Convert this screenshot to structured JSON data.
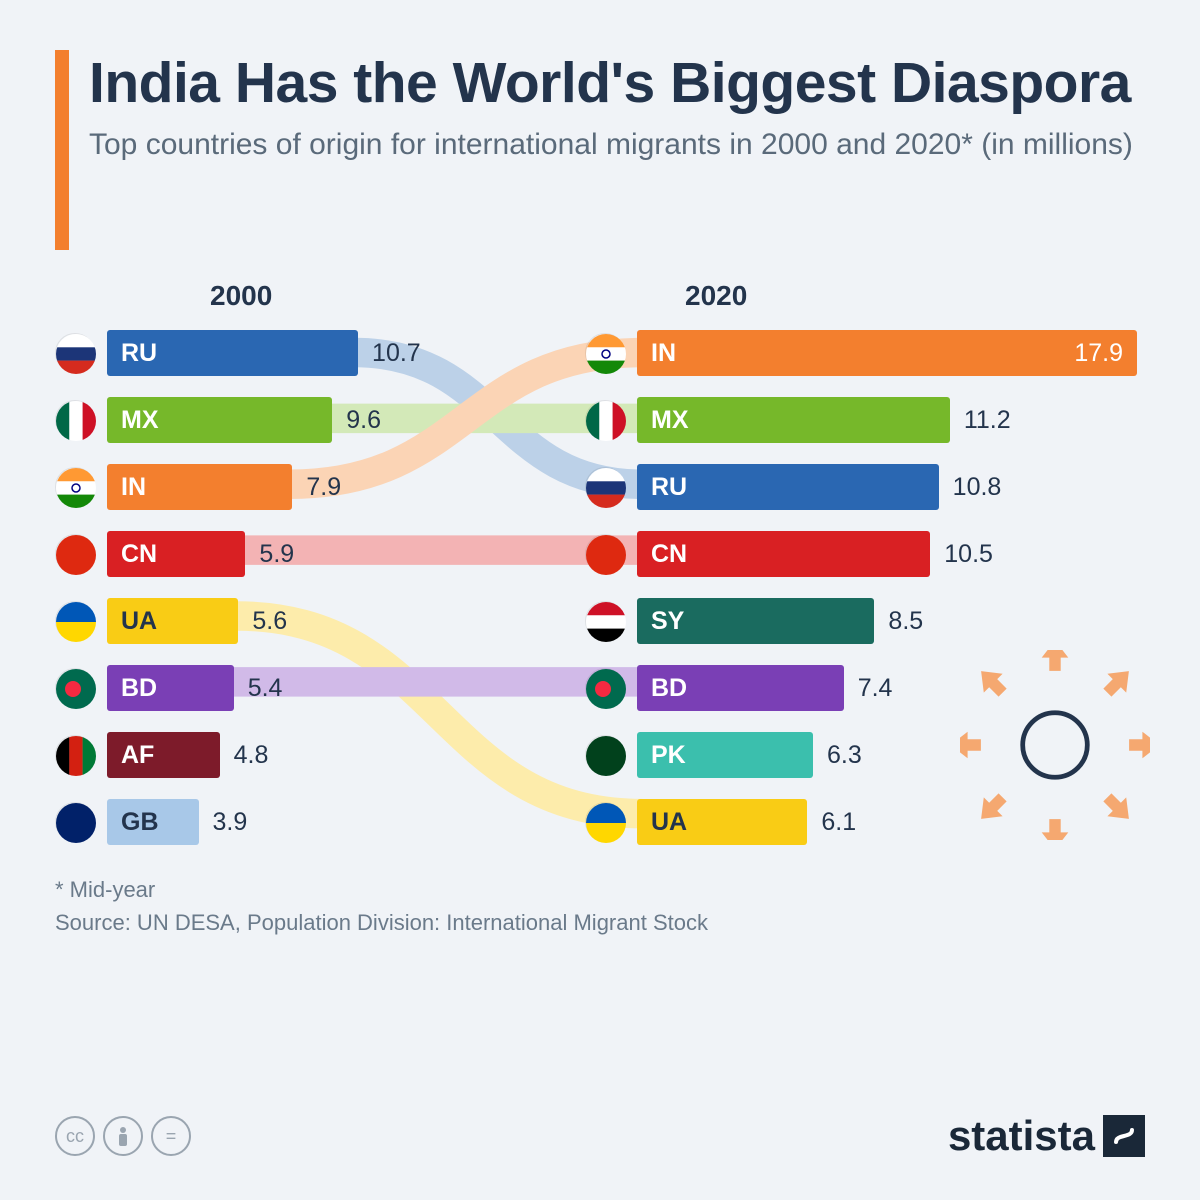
{
  "title": "India Has the World's Biggest Diaspora",
  "subtitle": "Top countries of origin for international migrants in 2000 and 2020* (in millions)",
  "year_left": "2000",
  "year_right": "2020",
  "max_value": 17.9,
  "bar_max_width_2000": 420,
  "bar_max_width_2020": 500,
  "colors": {
    "background": "#f0f3f7",
    "accent": "#f37f2e",
    "title": "#23344c",
    "subtitle": "#5a6a7a",
    "value": "#23344c"
  },
  "y2000": [
    {
      "code": "RU",
      "value": 10.7,
      "color": "#2a67b2",
      "textLight": false
    },
    {
      "code": "MX",
      "value": 9.6,
      "color": "#76b82a",
      "textLight": false
    },
    {
      "code": "IN",
      "value": 7.9,
      "color": "#f37f2e",
      "textLight": false
    },
    {
      "code": "CN",
      "value": 5.9,
      "color": "#d92023",
      "textLight": false
    },
    {
      "code": "UA",
      "value": 5.6,
      "color": "#f9cc15",
      "textLight": true
    },
    {
      "code": "BD",
      "value": 5.4,
      "color": "#7a3fb5",
      "textLight": false
    },
    {
      "code": "AF",
      "value": 4.8,
      "color": "#7d1b2a",
      "textLight": false
    },
    {
      "code": "GB",
      "value": 3.9,
      "color": "#a8c8e8",
      "textLight": true
    }
  ],
  "y2020": [
    {
      "code": "IN",
      "value": 17.9,
      "color": "#f37f2e",
      "textLight": false,
      "valueInside": true
    },
    {
      "code": "MX",
      "value": 11.2,
      "color": "#76b82a",
      "textLight": false
    },
    {
      "code": "RU",
      "value": 10.8,
      "color": "#2a67b2",
      "textLight": false
    },
    {
      "code": "CN",
      "value": 10.5,
      "color": "#d92023",
      "textLight": false
    },
    {
      "code": "SY",
      "value": 8.5,
      "color": "#1a6b5f",
      "textLight": false
    },
    {
      "code": "BD",
      "value": 7.4,
      "color": "#7a3fb5",
      "textLight": false
    },
    {
      "code": "PK",
      "value": 6.3,
      "color": "#3bbfad",
      "textLight": false
    },
    {
      "code": "UA",
      "value": 6.1,
      "color": "#f9cc15",
      "textLight": true
    }
  ],
  "connectors": [
    {
      "from": 0,
      "to": 2,
      "color": "#bcd1e8"
    },
    {
      "from": 1,
      "to": 1,
      "color": "#d3e9b8"
    },
    {
      "from": 2,
      "to": 0,
      "color": "#fbd4b5"
    },
    {
      "from": 3,
      "to": 3,
      "color": "#f3b3b4"
    },
    {
      "from": 4,
      "to": 7,
      "color": "#fdecab"
    },
    {
      "from": 5,
      "to": 5,
      "color": "#d1bae8"
    }
  ],
  "flags": {
    "RU": {
      "type": "tri-h",
      "c": [
        "#ffffff",
        "#1c3578",
        "#d52b1e"
      ]
    },
    "MX": {
      "type": "tri-v",
      "c": [
        "#006847",
        "#ffffff",
        "#ce1126"
      ]
    },
    "IN": {
      "type": "tri-h",
      "c": [
        "#ff9933",
        "#ffffff",
        "#138808"
      ],
      "dot": "#000080"
    },
    "CN": {
      "type": "solid",
      "c": [
        "#de2910"
      ]
    },
    "UA": {
      "type": "bi-h",
      "c": [
        "#0057b7",
        "#ffd700"
      ]
    },
    "BD": {
      "type": "solid",
      "c": [
        "#006a4e"
      ],
      "dot": "#f42a41"
    },
    "AF": {
      "type": "tri-v",
      "c": [
        "#000000",
        "#d32011",
        "#007a36"
      ]
    },
    "GB": {
      "type": "solid",
      "c": [
        "#012169"
      ]
    },
    "SY": {
      "type": "tri-h",
      "c": [
        "#ce1126",
        "#ffffff",
        "#000000"
      ]
    },
    "PK": {
      "type": "solid",
      "c": [
        "#01411c"
      ]
    }
  },
  "footnote_line1": "* Mid-year",
  "footnote_line2": "Source: UN DESA, Population Division: International Migrant Stock",
  "brand": "statista",
  "deco_arrow_color": "#f5a870"
}
